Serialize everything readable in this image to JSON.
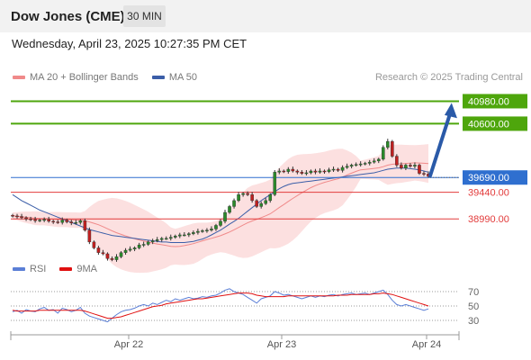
{
  "header": {
    "title": "Dow Jones (CME)",
    "interval": "30 MIN"
  },
  "datetime": "Wednesday, April 23, 2025 10:27:35 PM CET",
  "copyright": "Research © 2025 Trading Central",
  "legend_main": [
    {
      "label": "MA 20 + Bollinger Bands",
      "color": "#f08a8a"
    },
    {
      "label": "MA 50",
      "color": "#3b5ea8"
    }
  ],
  "legend_rsi": [
    {
      "label": "RSI",
      "color": "#5b7fd6"
    },
    {
      "label": "9MA",
      "color": "#e01010"
    }
  ],
  "colors": {
    "green": "#4ea60c",
    "blue_level": "#2f6fcf",
    "red_level": "#e23b3b",
    "arrow": "#2a5aa8",
    "candle_up": "#2a8a2a",
    "candle_down": "#c02020",
    "band": "#fbd6d6"
  },
  "chart_data": [
    {
      "type": "line",
      "subtype": "candlestick",
      "title": "",
      "x_tick_labels": [
        "Apr 22",
        "Apr 23",
        "Apr 24"
      ],
      "ylim": [
        38400,
        41200
      ],
      "levels": [
        {
          "value": 40980.0,
          "label": "40980.00",
          "kind": "resistance",
          "color": "#4ea60c"
        },
        {
          "value": 40600.0,
          "label": "40600.00",
          "kind": "resistance",
          "color": "#4ea60c"
        },
        {
          "value": 39690.0,
          "label": "39690.00",
          "kind": "pivot",
          "color": "#2f6fcf"
        },
        {
          "value": 39440.0,
          "label": "39440.00",
          "kind": "support",
          "color": "#e23b3b"
        },
        {
          "value": 38990.0,
          "label": "38990.00",
          "kind": "support",
          "color": "#e23b3b"
        }
      ],
      "projection": {
        "from": 39720,
        "to": 40980
      },
      "close_series": [
        39040,
        39030,
        39010,
        38990,
        38980,
        38960,
        38970,
        38980,
        38950,
        38940,
        38930,
        38970,
        38940,
        38920,
        38930,
        38960,
        38800,
        38600,
        38500,
        38420,
        38400,
        38320,
        38300,
        38350,
        38420,
        38460,
        38480,
        38500,
        38550,
        38560,
        38600,
        38620,
        38640,
        38660,
        38660,
        38680,
        38700,
        38720,
        38720,
        38740,
        38760,
        38780,
        38790,
        38800,
        38820,
        38880,
        38950,
        39100,
        39200,
        39300,
        39400,
        39420,
        39400,
        39300,
        39200,
        39250,
        39300,
        39400,
        39780,
        39800,
        39790,
        39830,
        39800,
        39780,
        39760,
        39770,
        39800,
        39780,
        39800,
        39790,
        39820,
        39830,
        39810,
        39860,
        39880,
        39900,
        39910,
        39920,
        39930,
        39950,
        39970,
        40000,
        40200,
        40300,
        40050,
        39900,
        39850,
        39900,
        39880,
        39900,
        39760,
        39750,
        39710
      ],
      "ma50_series": [
        39400,
        39350,
        39300,
        39260,
        39220,
        39180,
        39140,
        39110,
        39080,
        39050,
        39020,
        38990,
        38960,
        38930,
        38900,
        38870,
        38840,
        38810,
        38790,
        38770,
        38750,
        38730,
        38710,
        38700,
        38690,
        38680,
        38670,
        38660,
        38650,
        38640,
        38630,
        38620,
        38610,
        38600,
        38600,
        38590,
        38590,
        38590,
        38590,
        38600,
        38610,
        38630,
        38650,
        38680,
        38720,
        38760,
        38800,
        38850,
        38900,
        38950,
        39000,
        39060,
        39120,
        39180,
        39240,
        39300,
        39350,
        39400,
        39450,
        39500,
        39540,
        39570,
        39590,
        39600,
        39610,
        39620,
        39630,
        39640,
        39650,
        39660,
        39670,
        39680,
        39690,
        39700,
        39710,
        39720,
        39730,
        39740,
        39750,
        39760,
        39770,
        39790,
        39810,
        39830,
        39840,
        39850,
        39850,
        39850,
        39840,
        39830,
        39820,
        39800,
        39780
      ],
      "rsi_series": [
        42,
        44,
        40,
        45,
        43,
        42,
        46,
        48,
        44,
        45,
        40,
        47,
        45,
        42,
        44,
        48,
        40,
        36,
        34,
        32,
        30,
        28,
        33,
        38,
        42,
        44,
        45,
        47,
        50,
        52,
        50,
        54,
        52,
        55,
        58,
        56,
        60,
        58,
        60,
        62,
        60,
        61,
        63,
        62,
        64,
        65,
        68,
        72,
        74,
        70,
        68,
        66,
        62,
        58,
        54,
        60,
        62,
        64,
        70,
        68,
        65,
        66,
        64,
        62,
        60,
        62,
        64,
        62,
        64,
        63,
        65,
        66,
        64,
        66,
        67,
        68,
        66,
        67,
        68,
        66,
        68,
        70,
        72,
        66,
        58,
        52,
        50,
        52,
        50,
        48,
        46,
        44,
        46
      ],
      "rsi_ma9_series": [
        44,
        43,
        43,
        43,
        43,
        43,
        44,
        44,
        44,
        44,
        44,
        44,
        44,
        44,
        44,
        44,
        43,
        41,
        39,
        37,
        35,
        33,
        33,
        34,
        35,
        37,
        39,
        41,
        43,
        45,
        47,
        49,
        50,
        51,
        53,
        54,
        55,
        56,
        57,
        58,
        59,
        60,
        60,
        61,
        62,
        63,
        64,
        65,
        66,
        67,
        68,
        68,
        68,
        67,
        65,
        64,
        63,
        63,
        63,
        63,
        63,
        64,
        64,
        64,
        64,
        64,
        64,
        64,
        64,
        64,
        64,
        64,
        65,
        65,
        65,
        66,
        66,
        66,
        66,
        66,
        67,
        67,
        68,
        67,
        66,
        64,
        62,
        60,
        58,
        56,
        54,
        52,
        50
      ],
      "rsi_levels": [
        70,
        50,
        30
      ],
      "rsi_ylim": [
        15,
        85
      ]
    }
  ]
}
